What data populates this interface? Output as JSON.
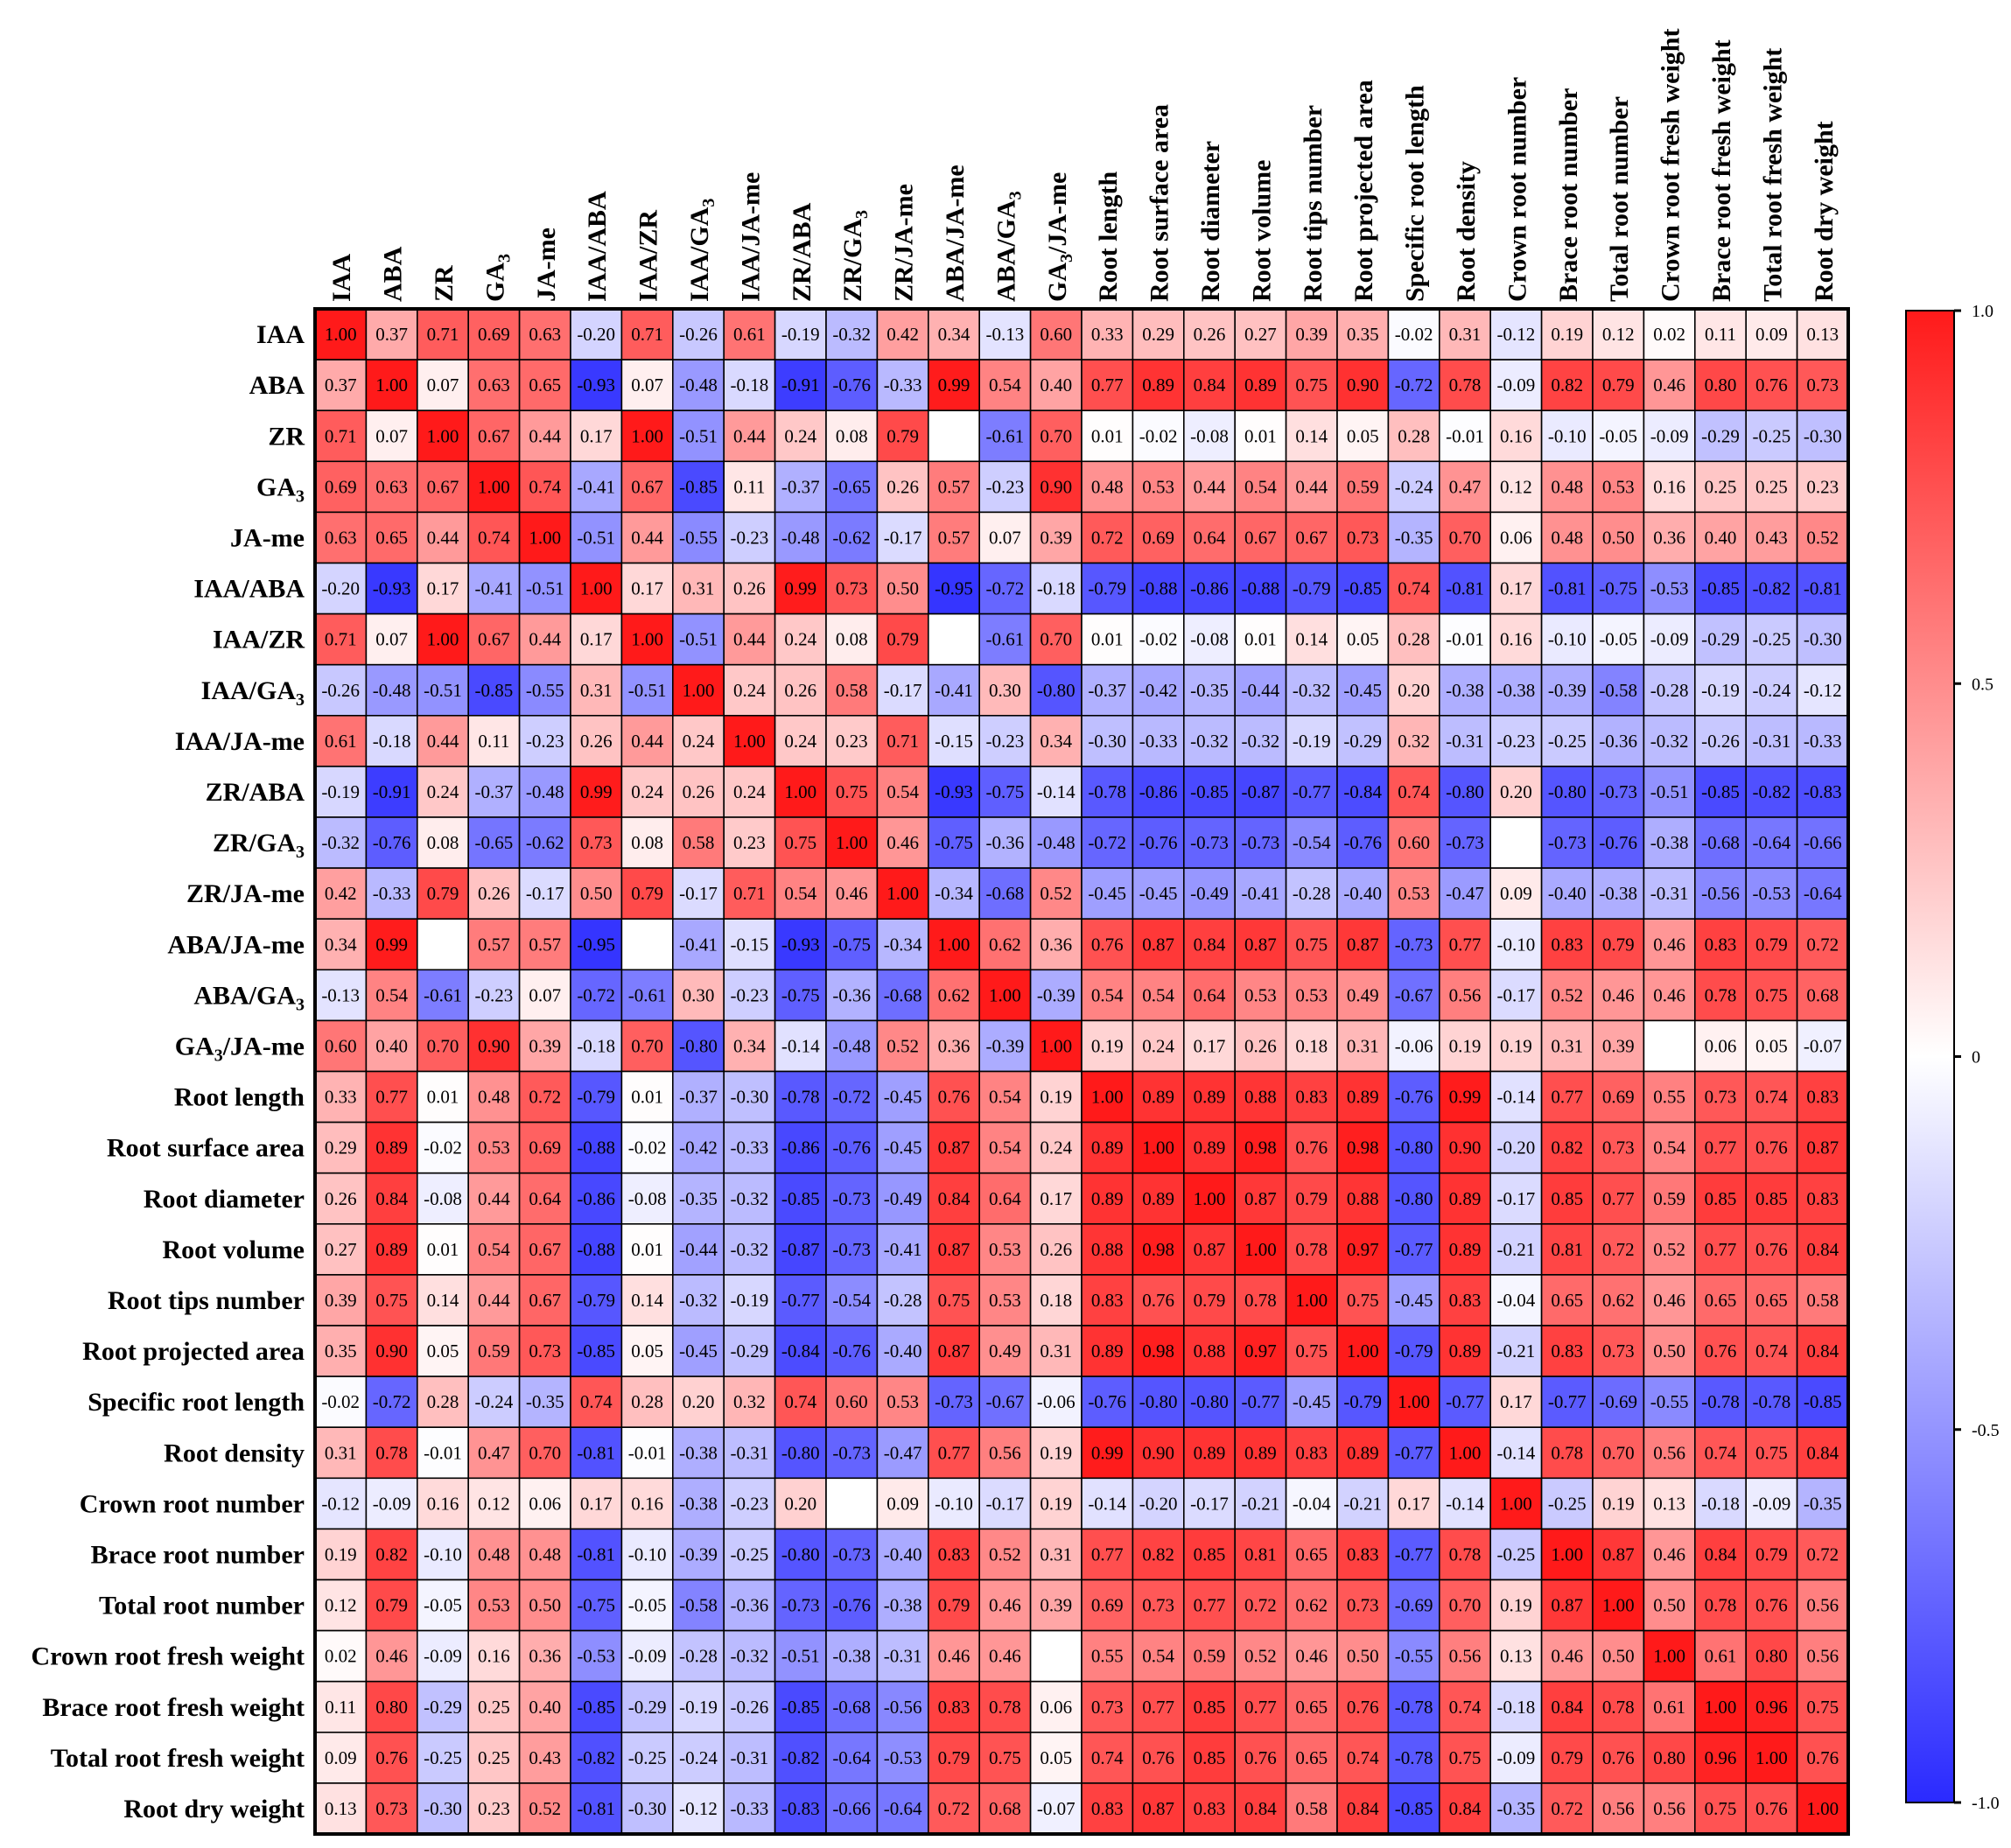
{
  "chart_data": {
    "type": "heatmap",
    "title": "",
    "xlabel": "",
    "ylabel": "",
    "colorbar": {
      "ticks": [
        "1.0",
        "0.5",
        "0",
        "-0.5",
        "-1.0"
      ],
      "tick_values": [
        1.0,
        0.5,
        0,
        -0.5,
        -1.0
      ],
      "vmin": -1.0,
      "vmax": 1.0,
      "color_low": "#2a2aff",
      "color_mid": "#ffffff",
      "color_high": "#ff1a1a"
    },
    "variables": [
      {
        "main": "IAA",
        "sub": ""
      },
      {
        "main": "ABA",
        "sub": ""
      },
      {
        "main": "ZR",
        "sub": ""
      },
      {
        "main": "GA",
        "sub": "3"
      },
      {
        "main": "JA-me",
        "sub": ""
      },
      {
        "main": "IAA/ABA",
        "sub": ""
      },
      {
        "main": "IAA/ZR",
        "sub": ""
      },
      {
        "main": "IAA/GA",
        "sub": "3"
      },
      {
        "main": "IAA/JA-me",
        "sub": ""
      },
      {
        "main": "ZR/ABA",
        "sub": ""
      },
      {
        "main": "ZR/GA",
        "sub": "3"
      },
      {
        "main": "ZR/JA-me",
        "sub": ""
      },
      {
        "main": "ABA/JA-me",
        "sub": ""
      },
      {
        "main": "ABA/GA",
        "sub": "3"
      },
      {
        "main": "GA",
        "sub": "3",
        "tail": "/JA-me"
      },
      {
        "main": "Root length",
        "sub": ""
      },
      {
        "main": "Root surface area",
        "sub": ""
      },
      {
        "main": "Root diameter",
        "sub": ""
      },
      {
        "main": "Root volume",
        "sub": ""
      },
      {
        "main": "Root tips number",
        "sub": ""
      },
      {
        "main": "Root projected area",
        "sub": ""
      },
      {
        "main": "Specific root length",
        "sub": ""
      },
      {
        "main": "Root density",
        "sub": ""
      },
      {
        "main": "Crown root number",
        "sub": ""
      },
      {
        "main": "Brace root number",
        "sub": ""
      },
      {
        "main": "Total root number",
        "sub": ""
      },
      {
        "main": "Crown root fresh weight",
        "sub": ""
      },
      {
        "main": "Brace root fresh weight",
        "sub": ""
      },
      {
        "main": "Total root fresh weight",
        "sub": ""
      },
      {
        "main": "Root dry weight",
        "sub": ""
      }
    ],
    "matrix": [
      [
        "1.00",
        "0.37",
        "0.71",
        "0.69",
        "0.63",
        "-0.20",
        "0.71",
        "-0.26",
        "0.61",
        "-0.19",
        "-0.32",
        "0.42",
        "0.34",
        "-0.13",
        "0.60",
        "0.33",
        "0.29",
        "0.26",
        "0.27",
        "0.39",
        "0.35",
        "-0.02",
        "0.31",
        "-0.12",
        "0.19",
        "0.12",
        "0.02",
        "0.11",
        "0.09",
        "0.13"
      ],
      [
        "0.37",
        "1.00",
        "0.07",
        "0.63",
        "0.65",
        "-0.93",
        "0.07",
        "-0.48",
        "-0.18",
        "-0.91",
        "-0.76",
        "-0.33",
        "0.99",
        "0.54",
        "0.40",
        "0.77",
        "0.89",
        "0.84",
        "0.89",
        "0.75",
        "0.90",
        "-0.72",
        "0.78",
        "-0.09",
        "0.82",
        "0.79",
        "0.46",
        "0.80",
        "0.76",
        "0.73"
      ],
      [
        "0.71",
        "0.07",
        "1.00",
        "0.67",
        "0.44",
        "0.17",
        "1.00",
        "-0.51",
        "0.44",
        "0.24",
        "0.08",
        "0.79",
        "",
        "-0.61",
        "0.70",
        "0.01",
        "-0.02",
        "-0.08",
        "0.01",
        "0.14",
        "0.05",
        "0.28",
        "-0.01",
        "0.16",
        "-0.10",
        "-0.05",
        "-0.09",
        "-0.29",
        "-0.25",
        "-0.30"
      ],
      [
        "0.69",
        "0.63",
        "0.67",
        "1.00",
        "0.74",
        "-0.41",
        "0.67",
        "-0.85",
        "0.11",
        "-0.37",
        "-0.65",
        "0.26",
        "0.57",
        "-0.23",
        "0.90",
        "0.48",
        "0.53",
        "0.44",
        "0.54",
        "0.44",
        "0.59",
        "-0.24",
        "0.47",
        "0.12",
        "0.48",
        "0.53",
        "0.16",
        "0.25",
        "0.25",
        "0.23"
      ],
      [
        "0.63",
        "0.65",
        "0.44",
        "0.74",
        "1.00",
        "-0.51",
        "0.44",
        "-0.55",
        "-0.23",
        "-0.48",
        "-0.62",
        "-0.17",
        "0.57",
        "0.07",
        "0.39",
        "0.72",
        "0.69",
        "0.64",
        "0.67",
        "0.67",
        "0.73",
        "-0.35",
        "0.70",
        "0.06",
        "0.48",
        "0.50",
        "0.36",
        "0.40",
        "0.43",
        "0.52"
      ],
      [
        "-0.20",
        "-0.93",
        "0.17",
        "-0.41",
        "-0.51",
        "1.00",
        "0.17",
        "0.31",
        "0.26",
        "0.99",
        "0.73",
        "0.50",
        "-0.95",
        "-0.72",
        "-0.18",
        "-0.79",
        "-0.88",
        "-0.86",
        "-0.88",
        "-0.79",
        "-0.85",
        "0.74",
        "-0.81",
        "0.17",
        "-0.81",
        "-0.75",
        "-0.53",
        "-0.85",
        "-0.82",
        "-0.81"
      ],
      [
        "0.71",
        "0.07",
        "1.00",
        "0.67",
        "0.44",
        "0.17",
        "1.00",
        "-0.51",
        "0.44",
        "0.24",
        "0.08",
        "0.79",
        "",
        "-0.61",
        "0.70",
        "0.01",
        "-0.02",
        "-0.08",
        "0.01",
        "0.14",
        "0.05",
        "0.28",
        "-0.01",
        "0.16",
        "-0.10",
        "-0.05",
        "-0.09",
        "-0.29",
        "-0.25",
        "-0.30"
      ],
      [
        "-0.26",
        "-0.48",
        "-0.51",
        "-0.85",
        "-0.55",
        "0.31",
        "-0.51",
        "1.00",
        "0.24",
        "0.26",
        "0.58",
        "-0.17",
        "-0.41",
        "0.30",
        "-0.80",
        "-0.37",
        "-0.42",
        "-0.35",
        "-0.44",
        "-0.32",
        "-0.45",
        "0.20",
        "-0.38",
        "-0.38",
        "-0.39",
        "-0.58",
        "-0.28",
        "-0.19",
        "-0.24",
        "-0.12"
      ],
      [
        "0.61",
        "-0.18",
        "0.44",
        "0.11",
        "-0.23",
        "0.26",
        "0.44",
        "0.24",
        "1.00",
        "0.24",
        "0.23",
        "0.71",
        "-0.15",
        "-0.23",
        "0.34",
        "-0.30",
        "-0.33",
        "-0.32",
        "-0.32",
        "-0.19",
        "-0.29",
        "0.32",
        "-0.31",
        "-0.23",
        "-0.25",
        "-0.36",
        "-0.32",
        "-0.26",
        "-0.31",
        "-0.33"
      ],
      [
        "-0.19",
        "-0.91",
        "0.24",
        "-0.37",
        "-0.48",
        "0.99",
        "0.24",
        "0.26",
        "0.24",
        "1.00",
        "0.75",
        "0.54",
        "-0.93",
        "-0.75",
        "-0.14",
        "-0.78",
        "-0.86",
        "-0.85",
        "-0.87",
        "-0.77",
        "-0.84",
        "0.74",
        "-0.80",
        "0.20",
        "-0.80",
        "-0.73",
        "-0.51",
        "-0.85",
        "-0.82",
        "-0.83"
      ],
      [
        "-0.32",
        "-0.76",
        "0.08",
        "-0.65",
        "-0.62",
        "0.73",
        "0.08",
        "0.58",
        "0.23",
        "0.75",
        "1.00",
        "0.46",
        "-0.75",
        "-0.36",
        "-0.48",
        "-0.72",
        "-0.76",
        "-0.73",
        "-0.73",
        "-0.54",
        "-0.76",
        "0.60",
        "-0.73",
        "",
        "-0.73",
        "-0.76",
        "-0.38",
        "-0.68",
        "-0.64",
        "-0.66"
      ],
      [
        "0.42",
        "-0.33",
        "0.79",
        "0.26",
        "-0.17",
        "0.50",
        "0.79",
        "-0.17",
        "0.71",
        "0.54",
        "0.46",
        "1.00",
        "-0.34",
        "-0.68",
        "0.52",
        "-0.45",
        "-0.45",
        "-0.49",
        "-0.41",
        "-0.28",
        "-0.40",
        "0.53",
        "-0.47",
        "0.09",
        "-0.40",
        "-0.38",
        "-0.31",
        "-0.56",
        "-0.53",
        "-0.64"
      ],
      [
        "0.34",
        "0.99",
        "",
        "0.57",
        "0.57",
        "-0.95",
        "",
        "-0.41",
        "-0.15",
        "-0.93",
        "-0.75",
        "-0.34",
        "1.00",
        "0.62",
        "0.36",
        "0.76",
        "0.87",
        "0.84",
        "0.87",
        "0.75",
        "0.87",
        "-0.73",
        "0.77",
        "-0.10",
        "0.83",
        "0.79",
        "0.46",
        "0.83",
        "0.79",
        "0.72"
      ],
      [
        "-0.13",
        "0.54",
        "-0.61",
        "-0.23",
        "0.07",
        "-0.72",
        "-0.61",
        "0.30",
        "-0.23",
        "-0.75",
        "-0.36",
        "-0.68",
        "0.62",
        "1.00",
        "-0.39",
        "0.54",
        "0.54",
        "0.64",
        "0.53",
        "0.53",
        "0.49",
        "-0.67",
        "0.56",
        "-0.17",
        "0.52",
        "0.46",
        "0.46",
        "0.78",
        "0.75",
        "0.68"
      ],
      [
        "0.60",
        "0.40",
        "0.70",
        "0.90",
        "0.39",
        "-0.18",
        "0.70",
        "-0.80",
        "0.34",
        "-0.14",
        "-0.48",
        "0.52",
        "0.36",
        "-0.39",
        "1.00",
        "0.19",
        "0.24",
        "0.17",
        "0.26",
        "0.18",
        "0.31",
        "-0.06",
        "0.19",
        "0.19",
        "0.31",
        "0.39",
        "",
        "0.06",
        "0.05",
        "-0.07"
      ],
      [
        "0.33",
        "0.77",
        "0.01",
        "0.48",
        "0.72",
        "-0.79",
        "0.01",
        "-0.37",
        "-0.30",
        "-0.78",
        "-0.72",
        "-0.45",
        "0.76",
        "0.54",
        "0.19",
        "1.00",
        "0.89",
        "0.89",
        "0.88",
        "0.83",
        "0.89",
        "-0.76",
        "0.99",
        "-0.14",
        "0.77",
        "0.69",
        "0.55",
        "0.73",
        "0.74",
        "0.83"
      ],
      [
        "0.29",
        "0.89",
        "-0.02",
        "0.53",
        "0.69",
        "-0.88",
        "-0.02",
        "-0.42",
        "-0.33",
        "-0.86",
        "-0.76",
        "-0.45",
        "0.87",
        "0.54",
        "0.24",
        "0.89",
        "1.00",
        "0.89",
        "0.98",
        "0.76",
        "0.98",
        "-0.80",
        "0.90",
        "-0.20",
        "0.82",
        "0.73",
        "0.54",
        "0.77",
        "0.76",
        "0.87"
      ],
      [
        "0.26",
        "0.84",
        "-0.08",
        "0.44",
        "0.64",
        "-0.86",
        "-0.08",
        "-0.35",
        "-0.32",
        "-0.85",
        "-0.73",
        "-0.49",
        "0.84",
        "0.64",
        "0.17",
        "0.89",
        "0.89",
        "1.00",
        "0.87",
        "0.79",
        "0.88",
        "-0.80",
        "0.89",
        "-0.17",
        "0.85",
        "0.77",
        "0.59",
        "0.85",
        "0.85",
        "0.83"
      ],
      [
        "0.27",
        "0.89",
        "0.01",
        "0.54",
        "0.67",
        "-0.88",
        "0.01",
        "-0.44",
        "-0.32",
        "-0.87",
        "-0.73",
        "-0.41",
        "0.87",
        "0.53",
        "0.26",
        "0.88",
        "0.98",
        "0.87",
        "1.00",
        "0.78",
        "0.97",
        "-0.77",
        "0.89",
        "-0.21",
        "0.81",
        "0.72",
        "0.52",
        "0.77",
        "0.76",
        "0.84"
      ],
      [
        "0.39",
        "0.75",
        "0.14",
        "0.44",
        "0.67",
        "-0.79",
        "0.14",
        "-0.32",
        "-0.19",
        "-0.77",
        "-0.54",
        "-0.28",
        "0.75",
        "0.53",
        "0.18",
        "0.83",
        "0.76",
        "0.79",
        "0.78",
        "1.00",
        "0.75",
        "-0.45",
        "0.83",
        "-0.04",
        "0.65",
        "0.62",
        "0.46",
        "0.65",
        "0.65",
        "0.58"
      ],
      [
        "0.35",
        "0.90",
        "0.05",
        "0.59",
        "0.73",
        "-0.85",
        "0.05",
        "-0.45",
        "-0.29",
        "-0.84",
        "-0.76",
        "-0.40",
        "0.87",
        "0.49",
        "0.31",
        "0.89",
        "0.98",
        "0.88",
        "0.97",
        "0.75",
        "1.00",
        "-0.79",
        "0.89",
        "-0.21",
        "0.83",
        "0.73",
        "0.50",
        "0.76",
        "0.74",
        "0.84"
      ],
      [
        "-0.02",
        "-0.72",
        "0.28",
        "-0.24",
        "-0.35",
        "0.74",
        "0.28",
        "0.20",
        "0.32",
        "0.74",
        "0.60",
        "0.53",
        "-0.73",
        "-0.67",
        "-0.06",
        "-0.76",
        "-0.80",
        "-0.80",
        "-0.77",
        "-0.45",
        "-0.79",
        "1.00",
        "-0.77",
        "0.17",
        "-0.77",
        "-0.69",
        "-0.55",
        "-0.78",
        "-0.78",
        "-0.85"
      ],
      [
        "0.31",
        "0.78",
        "-0.01",
        "0.47",
        "0.70",
        "-0.81",
        "-0.01",
        "-0.38",
        "-0.31",
        "-0.80",
        "-0.73",
        "-0.47",
        "0.77",
        "0.56",
        "0.19",
        "0.99",
        "0.90",
        "0.89",
        "0.89",
        "0.83",
        "0.89",
        "-0.77",
        "1.00",
        "-0.14",
        "0.78",
        "0.70",
        "0.56",
        "0.74",
        "0.75",
        "0.84"
      ],
      [
        "-0.12",
        "-0.09",
        "0.16",
        "0.12",
        "0.06",
        "0.17",
        "0.16",
        "-0.38",
        "-0.23",
        "0.20",
        "",
        "0.09",
        "-0.10",
        "-0.17",
        "0.19",
        "-0.14",
        "-0.20",
        "-0.17",
        "-0.21",
        "-0.04",
        "-0.21",
        "0.17",
        "-0.14",
        "1.00",
        "-0.25",
        "0.19",
        "0.13",
        "-0.18",
        "-0.09",
        "-0.35"
      ],
      [
        "0.19",
        "0.82",
        "-0.10",
        "0.48",
        "0.48",
        "-0.81",
        "-0.10",
        "-0.39",
        "-0.25",
        "-0.80",
        "-0.73",
        "-0.40",
        "0.83",
        "0.52",
        "0.31",
        "0.77",
        "0.82",
        "0.85",
        "0.81",
        "0.65",
        "0.83",
        "-0.77",
        "0.78",
        "-0.25",
        "1.00",
        "0.87",
        "0.46",
        "0.84",
        "0.79",
        "0.72"
      ],
      [
        "0.12",
        "0.79",
        "-0.05",
        "0.53",
        "0.50",
        "-0.75",
        "-0.05",
        "-0.58",
        "-0.36",
        "-0.73",
        "-0.76",
        "-0.38",
        "0.79",
        "0.46",
        "0.39",
        "0.69",
        "0.73",
        "0.77",
        "0.72",
        "0.62",
        "0.73",
        "-0.69",
        "0.70",
        "0.19",
        "0.87",
        "1.00",
        "0.50",
        "0.78",
        "0.76",
        "0.56"
      ],
      [
        "0.02",
        "0.46",
        "-0.09",
        "0.16",
        "0.36",
        "-0.53",
        "-0.09",
        "-0.28",
        "-0.32",
        "-0.51",
        "-0.38",
        "-0.31",
        "0.46",
        "0.46",
        "",
        "0.55",
        "0.54",
        "0.59",
        "0.52",
        "0.46",
        "0.50",
        "-0.55",
        "0.56",
        "0.13",
        "0.46",
        "0.50",
        "1.00",
        "0.61",
        "0.80",
        "0.56"
      ],
      [
        "0.11",
        "0.80",
        "-0.29",
        "0.25",
        "0.40",
        "-0.85",
        "-0.29",
        "-0.19",
        "-0.26",
        "-0.85",
        "-0.68",
        "-0.56",
        "0.83",
        "0.78",
        "0.06",
        "0.73",
        "0.77",
        "0.85",
        "0.77",
        "0.65",
        "0.76",
        "-0.78",
        "0.74",
        "-0.18",
        "0.84",
        "0.78",
        "0.61",
        "1.00",
        "0.96",
        "0.75"
      ],
      [
        "0.09",
        "0.76",
        "-0.25",
        "0.25",
        "0.43",
        "-0.82",
        "-0.25",
        "-0.24",
        "-0.31",
        "-0.82",
        "-0.64",
        "-0.53",
        "0.79",
        "0.75",
        "0.05",
        "0.74",
        "0.76",
        "0.85",
        "0.76",
        "0.65",
        "0.74",
        "-0.78",
        "0.75",
        "-0.09",
        "0.79",
        "0.76",
        "0.80",
        "0.96",
        "1.00",
        "0.76"
      ],
      [
        "0.13",
        "0.73",
        "-0.30",
        "0.23",
        "0.52",
        "-0.81",
        "-0.30",
        "-0.12",
        "-0.33",
        "-0.83",
        "-0.66",
        "-0.64",
        "0.72",
        "0.68",
        "-0.07",
        "0.83",
        "0.87",
        "0.83",
        "0.84",
        "0.58",
        "0.84",
        "-0.85",
        "0.84",
        "-0.35",
        "0.72",
        "0.56",
        "0.56",
        "0.75",
        "0.76",
        "1.00"
      ]
    ]
  }
}
